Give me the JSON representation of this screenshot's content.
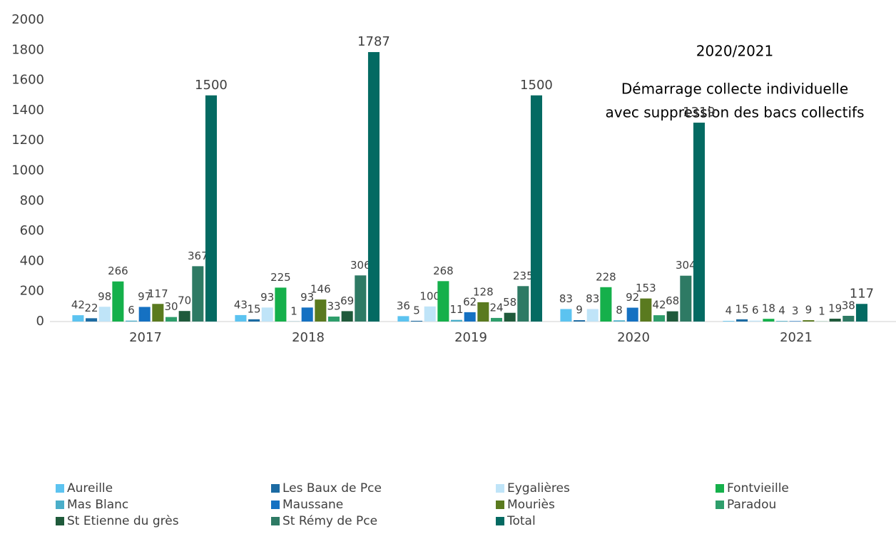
{
  "chart_data": {
    "type": "bar",
    "annotations": [
      "2020/2021",
      "Démarrage collecte individuelle",
      "avec suppression des bacs collectifs"
    ],
    "categories": [
      "2017",
      "2018",
      "2019",
      "2020",
      "2021"
    ],
    "series": [
      {
        "name": "Aureille",
        "color": "#5cc3f0",
        "values": [
          42,
          43,
          36,
          83,
          4
        ]
      },
      {
        "name": "Les Baux de Pce",
        "color": "#1c6ba3",
        "values": [
          22,
          15,
          5,
          9,
          15
        ]
      },
      {
        "name": "Eygalières",
        "color": "#bfe4f8",
        "values": [
          98,
          93,
          100,
          83,
          6
        ]
      },
      {
        "name": "Fontvieille",
        "color": "#15b04b",
        "values": [
          266,
          225,
          268,
          228,
          18
        ]
      },
      {
        "name": "Mas Blanc",
        "color": "#4aaec9",
        "values": [
          6,
          1,
          11,
          8,
          4
        ]
      },
      {
        "name": "Maussane",
        "color": "#1571c2",
        "values": [
          97,
          93,
          62,
          92,
          3
        ]
      },
      {
        "name": "Mouriès",
        "color": "#5a7a1f",
        "values": [
          117,
          146,
          128,
          153,
          9
        ]
      },
      {
        "name": "Paradou",
        "color": "#2e9e6b",
        "values": [
          30,
          33,
          24,
          42,
          1
        ]
      },
      {
        "name": "St Etienne du grès",
        "color": "#1f5a3b",
        "values": [
          70,
          69,
          58,
          68,
          19
        ]
      },
      {
        "name": "St Rémy de Pce",
        "color": "#2e7a64",
        "values": [
          367,
          306,
          235,
          304,
          38
        ]
      },
      {
        "name": "Total",
        "color": "#046a62",
        "values": [
          1500,
          1787,
          1500,
          1319,
          117
        ]
      }
    ],
    "ylim": [
      0,
      2000
    ],
    "yticks": [
      0,
      200,
      400,
      600,
      800,
      1000,
      1200,
      1400,
      1600,
      1800,
      2000
    ],
    "grid": false
  }
}
